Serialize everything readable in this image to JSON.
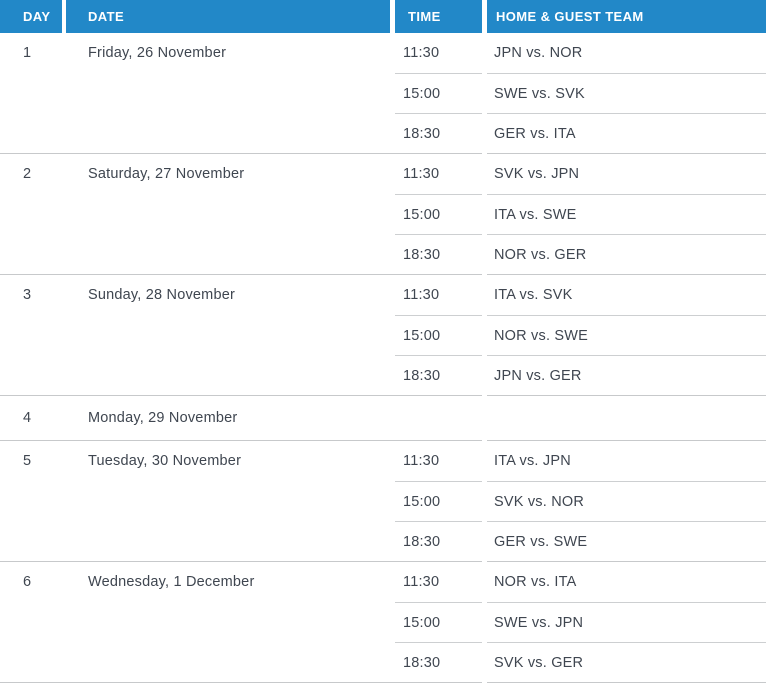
{
  "colors": {
    "header_bg": "#2288c8",
    "header_text": "#ffffff",
    "body_text": "#3f4650",
    "separator": "#c7c9cb"
  },
  "table": {
    "columns": {
      "day": "DAY",
      "date": "DATE",
      "time": "TIME",
      "teams": "HOME & GUEST TEAM"
    },
    "days": [
      {
        "day": "1",
        "date": "Friday, 26 November",
        "games": [
          {
            "time": "11:30",
            "teams": "JPN vs. NOR"
          },
          {
            "time": "15:00",
            "teams": "SWE vs. SVK"
          },
          {
            "time": "18:30",
            "teams": "GER vs. ITA"
          }
        ]
      },
      {
        "day": "2",
        "date": "Saturday, 27 November",
        "games": [
          {
            "time": "11:30",
            "teams": "SVK vs. JPN"
          },
          {
            "time": "15:00",
            "teams": "ITA vs. SWE"
          },
          {
            "time": "18:30",
            "teams": "NOR vs. GER"
          }
        ]
      },
      {
        "day": "3",
        "date": "Sunday, 28 November",
        "games": [
          {
            "time": "11:30",
            "teams": "ITA vs. SVK"
          },
          {
            "time": "15:00",
            "teams": "NOR vs. SWE"
          },
          {
            "time": "18:30",
            "teams": "JPN vs. GER"
          }
        ]
      },
      {
        "day": "4",
        "date": "Monday, 29 November",
        "games": []
      },
      {
        "day": "5",
        "date": "Tuesday, 30 November",
        "games": [
          {
            "time": "11:30",
            "teams": "ITA vs. JPN"
          },
          {
            "time": "15:00",
            "teams": "SVK vs. NOR"
          },
          {
            "time": "18:30",
            "teams": "GER vs. SWE"
          }
        ]
      },
      {
        "day": "6",
        "date": "Wednesday, 1 December",
        "games": [
          {
            "time": "11:30",
            "teams": "NOR vs. ITA"
          },
          {
            "time": "15:00",
            "teams": "SWE vs. JPN"
          },
          {
            "time": "18:30",
            "teams": "SVK vs. GER"
          }
        ]
      }
    ]
  }
}
